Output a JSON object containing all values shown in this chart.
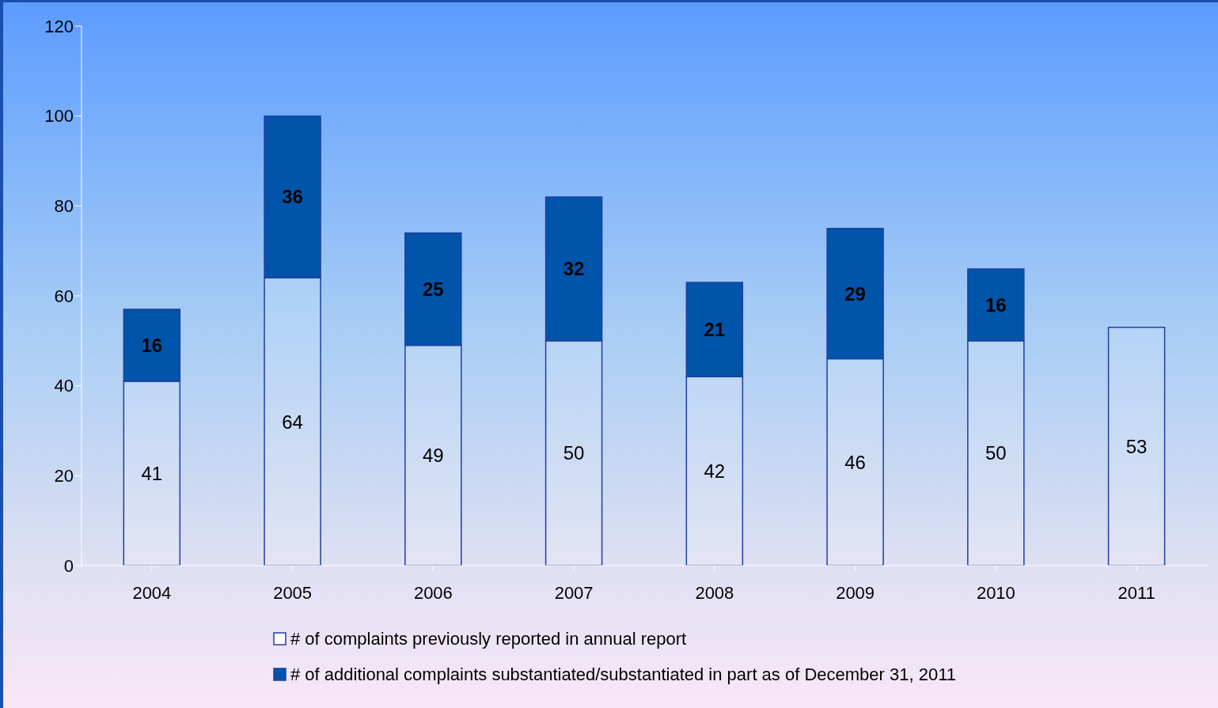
{
  "chart_data": {
    "type": "bar",
    "stacked": true,
    "categories": [
      "2004",
      "2005",
      "2006",
      "2007",
      "2008",
      "2009",
      "2010",
      "2011"
    ],
    "series": [
      {
        "name": "# of complaints previously reported in annual report",
        "color": "#ffffff",
        "values": [
          41,
          64,
          49,
          50,
          42,
          46,
          50,
          53
        ]
      },
      {
        "name": "# of additional complaints substantiated/substantiated in part as of December 31, 2011",
        "color": "#0055aa",
        "values": [
          16,
          36,
          25,
          32,
          21,
          29,
          16,
          null
        ]
      }
    ],
    "ylim": [
      0,
      120
    ],
    "yticks": [
      0,
      20,
      40,
      60,
      80,
      100,
      120
    ],
    "grid": false,
    "legend": "bottom",
    "data_labels": true
  }
}
